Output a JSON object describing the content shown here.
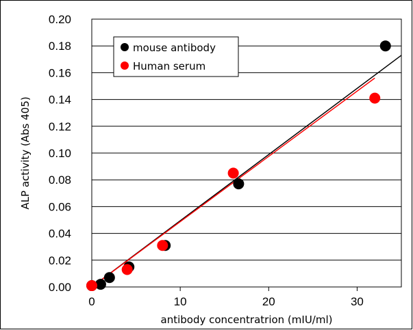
{
  "chart_data": {
    "type": "scatter",
    "xlabel": "antibody concentratrion (mIU/ml)",
    "ylabel": "ALP activity (Abs 405)",
    "xlim": [
      0,
      35
    ],
    "ylim": [
      0,
      0.2
    ],
    "xticks": [
      "0",
      "10",
      "20",
      "30"
    ],
    "yticks": [
      "0.00",
      "0.02",
      "0.04",
      "0.06",
      "0.08",
      "0.10",
      "0.12",
      "0.14",
      "0.16",
      "0.18",
      "0.20"
    ],
    "grid": "horizontal",
    "legend_position": "top-left",
    "series": [
      {
        "name": "mouse antibody",
        "color": "#000000",
        "points": [
          {
            "x": 0,
            "y": 0.001
          },
          {
            "x": 1,
            "y": 0.002
          },
          {
            "x": 2,
            "y": 0.007
          },
          {
            "x": 4.2,
            "y": 0.015
          },
          {
            "x": 8.3,
            "y": 0.031
          },
          {
            "x": 16.6,
            "y": 0.077
          },
          {
            "x": 33.2,
            "y": 0.18
          }
        ],
        "trendline": {
          "x1": 0,
          "y1": 0.0,
          "x2": 35,
          "y2": 0.173
        }
      },
      {
        "name": "Human serum",
        "color": "#ff0000",
        "points": [
          {
            "x": 0,
            "y": 0.001
          },
          {
            "x": 4,
            "y": 0.013
          },
          {
            "x": 8,
            "y": 0.031
          },
          {
            "x": 16,
            "y": 0.085
          },
          {
            "x": 32,
            "y": 0.141
          }
        ],
        "trendline": {
          "x1": 0,
          "y1": 0.0,
          "x2": 32,
          "y2": 0.156
        }
      }
    ]
  }
}
